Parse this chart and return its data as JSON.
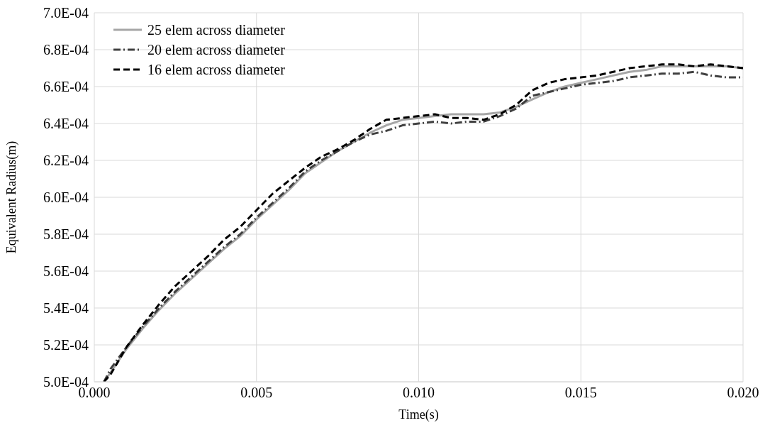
{
  "chart_data": {
    "type": "line",
    "xlabel": "Time(s)",
    "ylabel": "Equivalent  Radius(m)",
    "x": [
      0.0003,
      0.0005,
      0.001,
      0.0015,
      0.002,
      0.0025,
      0.003,
      0.0035,
      0.004,
      0.0045,
      0.005,
      0.0055,
      0.006,
      0.0065,
      0.007,
      0.0075,
      0.008,
      0.0085,
      0.009,
      0.0095,
      0.01,
      0.0105,
      0.011,
      0.0115,
      0.012,
      0.0125,
      0.013,
      0.0135,
      0.014,
      0.0145,
      0.015,
      0.0155,
      0.016,
      0.0165,
      0.017,
      0.0175,
      0.018,
      0.0185,
      0.019,
      0.0195,
      0.02
    ],
    "series": [
      {
        "name": "25 elem across diameter",
        "color": "#a6a6a6",
        "line_style": "solid",
        "values": [
          0.0005,
          0.000505,
          0.000518,
          0.000529,
          0.000539,
          0.000548,
          0.000556,
          0.000564,
          0.000572,
          0.000579,
          0.000588,
          0.000596,
          0.000604,
          0.000613,
          0.000619,
          0.000625,
          0.00063,
          0.000635,
          0.000639,
          0.000642,
          0.000643,
          0.000644,
          0.000645,
          0.000645,
          0.000645,
          0.000646,
          0.000649,
          0.000653,
          0.000657,
          0.00066,
          0.000662,
          0.000664,
          0.000666,
          0.000668,
          0.000669,
          0.000671,
          0.000671,
          0.000671,
          0.000671,
          0.000671,
          0.00067
        ]
      },
      {
        "name": "20 elem across diameter",
        "color": "#404040",
        "line_style": "dashdot",
        "values": [
          0.0005,
          0.000507,
          0.000519,
          0.00053,
          0.00054,
          0.000549,
          0.000557,
          0.000565,
          0.000573,
          0.00058,
          0.000589,
          0.000597,
          0.000605,
          0.000614,
          0.00062,
          0.000625,
          0.00063,
          0.000634,
          0.000636,
          0.000639,
          0.00064,
          0.000641,
          0.00064,
          0.000641,
          0.000641,
          0.000644,
          0.000648,
          0.000655,
          0.000657,
          0.000659,
          0.000661,
          0.000662,
          0.000663,
          0.000665,
          0.000666,
          0.000667,
          0.000667,
          0.000668,
          0.000666,
          0.000665,
          0.000665
        ]
      },
      {
        "name": "16 elem across diameter",
        "color": "#000000",
        "line_style": "dashed",
        "values": [
          0.0005,
          0.000504,
          0.000519,
          0.000531,
          0.000542,
          0.000552,
          0.00056,
          0.000568,
          0.000577,
          0.000584,
          0.000593,
          0.000602,
          0.000609,
          0.000616,
          0.000622,
          0.000626,
          0.000631,
          0.000637,
          0.000642,
          0.000643,
          0.000644,
          0.000645,
          0.000643,
          0.000643,
          0.000642,
          0.000645,
          0.00065,
          0.000658,
          0.000662,
          0.000664,
          0.000665,
          0.000666,
          0.000668,
          0.00067,
          0.000671,
          0.000672,
          0.000672,
          0.000671,
          0.000672,
          0.000671,
          0.00067
        ]
      }
    ],
    "xlim": [
      0,
      0.02
    ],
    "xticks": [
      {
        "value": 0,
        "label": "0.000"
      },
      {
        "value": 0.005,
        "label": "0.005"
      },
      {
        "value": 0.01,
        "label": "0.010"
      },
      {
        "value": 0.015,
        "label": "0.015"
      },
      {
        "value": 0.02,
        "label": "0.020"
      }
    ],
    "ylim": [
      0.0005,
      0.0007
    ],
    "yticks": [
      {
        "value": 0.0005,
        "label": "5.0E-04"
      },
      {
        "value": 0.00052,
        "label": "5.2E-04"
      },
      {
        "value": 0.00054,
        "label": "5.4E-04"
      },
      {
        "value": 0.00056,
        "label": "5.6E-04"
      },
      {
        "value": 0.00058,
        "label": "5.8E-04"
      },
      {
        "value": 0.0006,
        "label": "6.0E-04"
      },
      {
        "value": 0.00062,
        "label": "6.2E-04"
      },
      {
        "value": 0.00064,
        "label": "6.4E-04"
      },
      {
        "value": 0.00066,
        "label": "6.6E-04"
      },
      {
        "value": 0.00068,
        "label": "6.8E-04"
      },
      {
        "value": 0.0007,
        "label": "7.0E-04"
      }
    ],
    "grid": true,
    "legend": "top left",
    "marker": "none"
  }
}
